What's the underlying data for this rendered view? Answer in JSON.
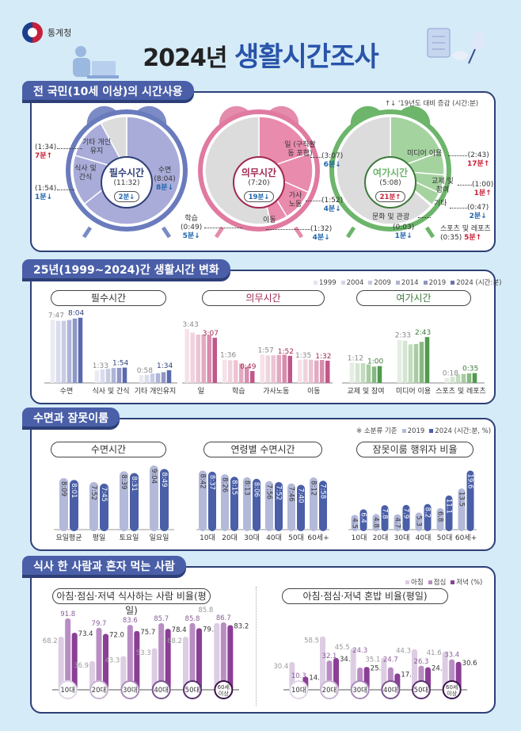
{
  "header": {
    "org": "통계청",
    "title_year": "2024년",
    "title_main": "생활시간조사"
  },
  "colors": {
    "essential": "#7b8bc6",
    "obligatory": "#e58bac",
    "leisure": "#6cb56a",
    "navy": "#4a5fa8",
    "purple": "#8a3f95"
  },
  "section1": {
    "title": "전 국민(10세 이상)의 시간사용",
    "legend": "↑↓ '19년도 대비 증감  (시간:분)",
    "essential": {
      "title": "필수시간",
      "total": "(11:32)",
      "change": "2분↓",
      "items": [
        {
          "label": "수면",
          "value": "(8:04)",
          "change": "8분↓",
          "minutes": 484
        },
        {
          "label": "식사 및 간식",
          "value": "(1:54)",
          "change": "1분↓",
          "minutes": 114
        },
        {
          "label": "기타 개인유지",
          "value": "(1:34)",
          "change": "7분↑",
          "minutes": 94
        }
      ]
    },
    "obligatory": {
      "title": "의무시간",
      "total": "(7:20)",
      "change": "19분↓",
      "items": [
        {
          "label": "일 (구직활동 포함)",
          "value": "(3:07)",
          "change": "6분↓",
          "minutes": 187
        },
        {
          "label": "가사 노동",
          "value": "(1:52)",
          "change": "4분↓",
          "minutes": 112
        },
        {
          "label": "이동",
          "value": "(1:32)",
          "change": "4분↓",
          "minutes": 92
        },
        {
          "label": "학습",
          "value": "(0:49)",
          "change": "5분↓",
          "minutes": 49
        }
      ]
    },
    "leisure": {
      "title": "여가시간",
      "total": "(5:08)",
      "change": "21분↑",
      "items": [
        {
          "label": "미디어 이용",
          "value": "(2:43)",
          "change": "17분↑",
          "minutes": 163
        },
        {
          "label": "교제 및 참여",
          "value": "(1:00)",
          "change": "1분↑",
          "minutes": 60
        },
        {
          "label": "기타",
          "value": "(0:47)",
          "change": "2분↓",
          "minutes": 47
        },
        {
          "label": "스포츠 및 레포츠",
          "value": "(0:35)",
          "change": "5분↑",
          "minutes": 35
        },
        {
          "label": "문화 및 관광",
          "value": "(0:03)",
          "change": "1분↓",
          "minutes": 3
        }
      ]
    }
  },
  "section2": {
    "title": "25년(1999~2024)간 생활시간 변화",
    "years": [
      "1999",
      "2004",
      "2009",
      "2014",
      "2019",
      "2024"
    ],
    "unit": "(시간:분)",
    "groups": [
      {
        "title": "필수시간",
        "categories": [
          {
            "label": "수면",
            "first": "7:47",
            "last": "8:04",
            "minutes": [
              467,
              461,
              461,
              467,
              478,
              484
            ]
          },
          {
            "label": "식사 및 간식",
            "first": "1:33",
            "last": "1:54",
            "minutes": [
              93,
              100,
              105,
              111,
              112,
              114
            ]
          },
          {
            "label": "기타 개인유지",
            "first": "0:58",
            "last": "1:34",
            "minutes": [
              58,
              60,
              70,
              72,
              80,
              94
            ]
          }
        ]
      },
      {
        "title": "의무시간",
        "categories": [
          {
            "label": "일",
            "first": "3:43",
            "last": "3:07",
            "minutes": [
              223,
              208,
              200,
              200,
              198,
              187
            ]
          },
          {
            "label": "학습",
            "first": "1:36",
            "last": "0:49",
            "minutes": [
              96,
              94,
              94,
              80,
              66,
              49
            ]
          },
          {
            "label": "가사노동",
            "first": "1:57",
            "last": "1:52",
            "minutes": [
              117,
              114,
              114,
              116,
              117,
              112
            ]
          },
          {
            "label": "이동",
            "first": "1:35",
            "last": "1:32",
            "minutes": [
              95,
              98,
              96,
              93,
              95,
              92
            ]
          }
        ]
      },
      {
        "title": "여가시간",
        "categories": [
          {
            "label": "교제 및 참여",
            "first": "1:12",
            "last": "1:00",
            "minutes": [
              72,
              70,
              70,
              66,
              58,
              60
            ]
          },
          {
            "label": "미디어 이용",
            "first": "2:33",
            "last": "2:43",
            "minutes": [
              153,
              150,
              137,
              138,
              146,
              163
            ]
          },
          {
            "label": "스포츠 및 레포츠",
            "first": "0:18",
            "last": "0:35",
            "minutes": [
              18,
              22,
              30,
              32,
              34,
              35
            ]
          }
        ]
      }
    ]
  },
  "section3": {
    "title": "수면과 잠못이룸",
    "note": "※ 소분류 기준",
    "years": [
      "2019",
      "2024"
    ],
    "unit": "(시간:분, %)",
    "sleep": {
      "title": "수면시간",
      "categories": [
        "요일평균",
        "평일",
        "토요일",
        "일요일"
      ],
      "y2019": [
        "8:09",
        "7:52",
        "8:39",
        "9:04"
      ],
      "y2024": [
        "8:01",
        "7:45",
        "8:31",
        "8:49"
      ]
    },
    "age_sleep": {
      "title": "연령별 수면시간",
      "categories": [
        "10대",
        "20대",
        "30대",
        "40대",
        "50대",
        "60세+"
      ],
      "y2019": [
        "8:42",
        "8:26",
        "8:13",
        "7:56",
        "7:46",
        "8:12"
      ],
      "y2024": [
        "8:37",
        "8:15",
        "8:06",
        "7:52",
        "7:40",
        "7:58"
      ]
    },
    "insomnia": {
      "title": "잠못이룸 행위자 비율",
      "categories": [
        "10대",
        "20대",
        "30대",
        "40대",
        "50대",
        "60세+"
      ],
      "y2019": [
        4.5,
        4.8,
        4.7,
        5.3,
        6.8,
        13.5
      ],
      "y2024": [
        6.4,
        7.8,
        7.9,
        8.2,
        11.1,
        19.6
      ]
    }
  },
  "section4": {
    "title": "식사 한 사람과 혼자 먹는 사람",
    "meals": [
      "아침",
      "점심",
      "저녁"
    ],
    "unit": "(%)",
    "ages": [
      "10대",
      "20대",
      "30대",
      "40대",
      "50대",
      "60세 이상"
    ],
    "eating": {
      "title": "아침·점심·저녁 식사하는 사람 비율(평일)",
      "values": [
        [
          68.2,
          91.8,
          73.4
        ],
        [
          36.9,
          79.7,
          72.0
        ],
        [
          43.3,
          83.6,
          75.7
        ],
        [
          53.3,
          85.7,
          78.4
        ],
        [
          68.2,
          85.8,
          79.2
        ],
        [
          85.8,
          86.7,
          83.2
        ]
      ]
    },
    "alone": {
      "title": "아침·점심·저녁 혼밥 비율(평일)",
      "values": [
        [
          30.4,
          10.3,
          14.3
        ],
        [
          58.5,
          32.1,
          34.8
        ],
        [
          45.5,
          24.3,
          25.0
        ],
        [
          35.1,
          24.7,
          17.8
        ],
        [
          44.3,
          26.3,
          24.7
        ],
        [
          41.6,
          33.4,
          30.6
        ]
      ]
    }
  }
}
